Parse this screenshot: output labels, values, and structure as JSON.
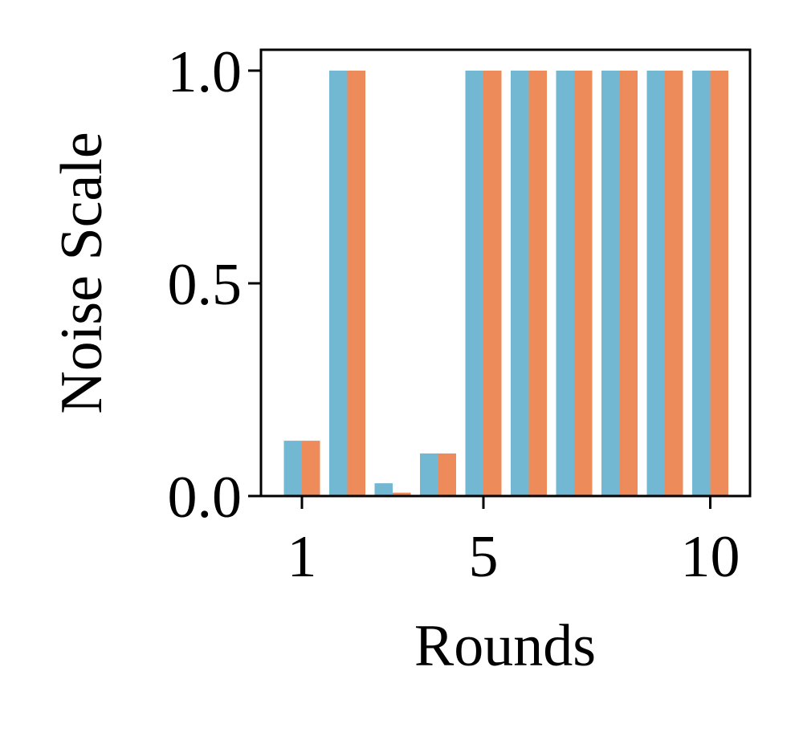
{
  "chart_data": {
    "type": "bar",
    "title": "",
    "xlabel": "Rounds",
    "ylabel": "Noise Scale",
    "x": [
      1,
      2,
      3,
      4,
      5,
      6,
      7,
      8,
      9,
      10
    ],
    "x_ticks": [
      "1",
      "5",
      "10"
    ],
    "y_ticks": [
      "0.0",
      "0.5",
      "1.0"
    ],
    "ylim": [
      0,
      1.05
    ],
    "grid": false,
    "legend": "none",
    "series": [
      {
        "color": "#72b8d3",
        "values": [
          0.13,
          1.0,
          0.03,
          0.1,
          1.0,
          1.0,
          1.0,
          1.0,
          1.0,
          1.0
        ]
      },
      {
        "color": "#ee8b5a",
        "values": [
          0.13,
          1.0,
          0.008,
          0.1,
          1.0,
          1.0,
          1.0,
          1.0,
          1.0,
          1.0
        ]
      }
    ]
  }
}
